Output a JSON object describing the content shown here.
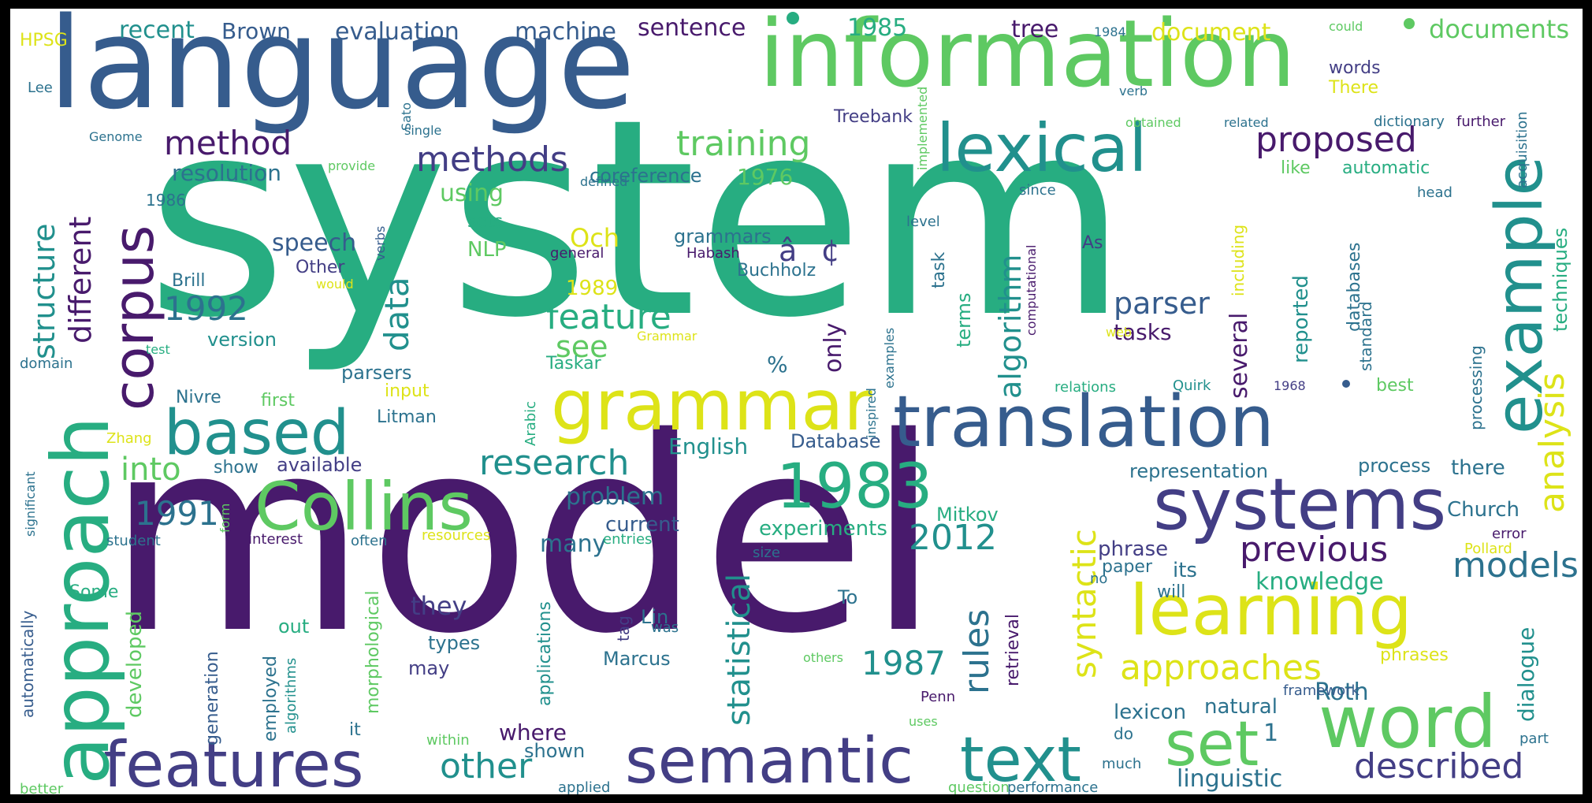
{
  "words": {
    "system": "system",
    "model": "model",
    "language": "language",
    "information": "information",
    "translation": "translation",
    "systems": "systems",
    "semantic": "semantic",
    "features": "features",
    "word": "word",
    "learning": "learning",
    "grammar": "grammar",
    "lexical": "lexical",
    "corpus": "corpus",
    "approach": "approach",
    "example": "example",
    "collins": "Collins",
    "based": "based",
    "text": "text",
    "n1983": "1983",
    "set": "set",
    "approaches": "approaches",
    "training": "training",
    "method": "method",
    "methods": "methods",
    "proposed": "proposed",
    "previous": "previous",
    "described": "described",
    "models": "models",
    "other": "other",
    "research": "research",
    "feature": "feature",
    "parser": "parser",
    "structure": "structure",
    "different": "different",
    "data": "data",
    "algorithm": "algorithm",
    "analysis": "analysis",
    "syntactic": "syntactic",
    "statistical": "statistical",
    "rules": "rules",
    "n2012": "2012",
    "n1992": "1992",
    "n1991": "1991",
    "n1987": "1987",
    "into": "into",
    "see": "see",
    "only": "only",
    "several": "several",
    "speech": "speech",
    "resolution": "resolution",
    "evaluation": "evaluation",
    "machine": "machine",
    "sentence": "sentence",
    "documents": "documents",
    "document": "document",
    "tree": "tree",
    "n1985": "1985",
    "recent": "recent",
    "brown": "Brown",
    "hpsg": "HPSG",
    "lee": "Lee",
    "genome": "Genome",
    "n1986": "1986",
    "n1976": "1976",
    "n1989": "1989",
    "coreference": "coreference",
    "using": "using",
    "sets": "sets",
    "nlp": "NLP",
    "och": "Och",
    "grammars": "grammars",
    "habash": "Habash",
    "garbled": "â¢",
    "buchholz": "Buchholz",
    "other_cap": "Other",
    "brill": "Brill",
    "version": "version",
    "parsers": "parsers",
    "nivre": "Nivre",
    "first": "first",
    "input": "input",
    "litman": "Litman",
    "show": "show",
    "available": "available",
    "english": "English",
    "database": "Database",
    "problem": "problem",
    "current": "current",
    "many": "many",
    "experiments": "experiments",
    "mitkov": "Mitkov",
    "knowledge": "knowledge",
    "phrase": "phrase",
    "paper": "paper",
    "its": "its",
    "will": "will",
    "tasks": "tasks",
    "terms": "terms",
    "task": "task",
    "reported": "reported",
    "databases": "databases",
    "techniques": "techniques",
    "representation": "representation",
    "process": "process",
    "there": "there",
    "church": "Church",
    "dialogue": "dialogue",
    "roth": "Roth",
    "natural": "natural",
    "lexicon": "lexicon",
    "linguistic": "linguistic",
    "where": "where",
    "shown": "shown",
    "they": "they",
    "types": "types",
    "may": "may",
    "marcus": "Marcus",
    "lin": "Lin",
    "tag": "tag",
    "applications": "applications",
    "some": "Some",
    "developed": "developed",
    "generation": "generation",
    "employed": "employed",
    "algorithms": "algorithms",
    "out": "out",
    "it": "it",
    "morphological": "morphological",
    "retrieval": "retrieval",
    "to": "To",
    "penn": "Penn",
    "uses": "uses",
    "others": "others",
    "within": "within",
    "applied": "applied",
    "better": "better",
    "automatically": "automatically",
    "significant": "significant",
    "zhang": "Zhang",
    "domain": "domain",
    "student": "student",
    "interest": "interest",
    "often": "often",
    "resources": "resources",
    "entries": "entries",
    "form": "form",
    "size": "size",
    "was": "was",
    "words": "words",
    "could": "could",
    "n1984": "1984",
    "verb": "verb",
    "obtained": "obtained",
    "related": "related",
    "dictionary": "dictionary",
    "further": "further",
    "acquisition": "acquisition",
    "head": "head",
    "since": "since",
    "like": "like",
    "automatic": "automatic",
    "treebank": "Treebank",
    "single": "single",
    "sato": "Sato",
    "implemented": "implemented",
    "provide": "provide",
    "defined": "defined",
    "level": "level",
    "as": "As",
    "including": "including",
    "standard": "standard",
    "processing": "processing",
    "web": "web",
    "relations": "relations",
    "quirk": "Quirk",
    "n1968": "1968",
    "best": "best",
    "verbs": "verbs",
    "general": "general",
    "would": "would",
    "test": "test",
    "grammar_cap": "Grammar",
    "taskar": "Taskar",
    "arabic": "Arabic",
    "inspired": "inspired",
    "examples": "examples",
    "computational": "computational",
    "percent": "%",
    "error": "error",
    "pollard": "Pollard",
    "phrases": "phrases",
    "framework": "framework",
    "part": "part",
    "do": "do",
    "much": "much",
    "performance": "performance",
    "question": "question",
    "no": "no",
    "one": "1",
    "there_cap": "There"
  },
  "palette": {
    "purple": "#481a6c",
    "indigo": "#433e85",
    "blue": "#365c8d",
    "steel": "#2c728e",
    "teal": "#21908d",
    "green": "#27ad81",
    "lightgreen": "#5ec962",
    "lime": "#aadc32",
    "yellow": "#dde318",
    "background": "#ffffff"
  }
}
